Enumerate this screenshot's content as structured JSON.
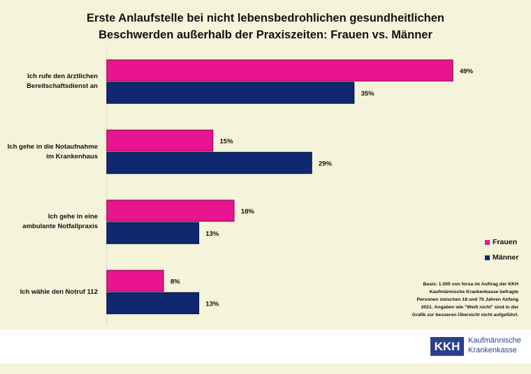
{
  "chart_data": {
    "type": "bar",
    "orientation": "horizontal",
    "title_lines": [
      "Erste Anlaufstelle bei nicht lebensbedrohlichen gesundheitlichen",
      "Beschwerden außerhalb der Praxiszeiten: Frauen vs. Männer"
    ],
    "categories": [
      [
        "Ich rufe den ärztlichen",
        "Bereitschaftsdienst an"
      ],
      [
        "Ich gehe in die Notaufnahme",
        "im Krankenhaus"
      ],
      [
        "Ich gehe in eine",
        "ambulante Notfallpraxis"
      ],
      [
        "Ich wähle den Notruf 112"
      ]
    ],
    "series": [
      {
        "name": "Frauen",
        "color": "#e8158f",
        "values": [
          49,
          15,
          18,
          8
        ],
        "labels": [
          "49%",
          "15%",
          "18%",
          "8%"
        ]
      },
      {
        "name": "Männer",
        "color": "#0f2870",
        "values": [
          35,
          29,
          13,
          13
        ],
        "labels": [
          "35%",
          "29%",
          "13%",
          "13%"
        ]
      }
    ],
    "xlim": [
      0,
      50
    ],
    "unit": "%",
    "grid": false,
    "legend_position": "right"
  },
  "note": [
    "Basis: 1.005 von forsa im Auftrag der KKH",
    "Kaufmännische Krankenkasse befragte",
    "Personen zwischen 18 und 70 Jahren Anfang",
    "2021. Angaben wie \"Weiß nicht\" sind in der",
    "Grafik zur besseren Übersicht nicht aufgeführt."
  ],
  "logo": {
    "mark": "KKH",
    "text_lines": [
      "Kaufmännische",
      "Krankenkasse"
    ]
  }
}
